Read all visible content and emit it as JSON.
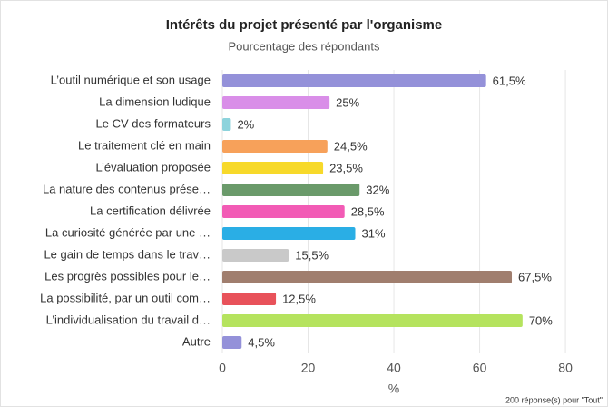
{
  "chart_data": {
    "type": "barh",
    "title": "Intérêts du projet présenté par l'organisme",
    "subtitle": "Pourcentage des répondants",
    "xlabel": "%",
    "footnote": "200 réponse(s) pour \"Tout\"",
    "categories": [
      "L’outil numérique et son usage",
      "La dimension ludique",
      "Le CV des formateurs",
      "Le traitement clé en main",
      "L’évaluation proposée",
      "La nature des contenus prése…",
      "La certification délivrée",
      "La curiosité générée par une …",
      "Le gain de temps dans le trav…",
      "Les progrès possibles pour le…",
      "La possibilité, par un outil com…",
      "L’individualisation du travail d…",
      "Autre"
    ],
    "values": [
      61.5,
      25,
      2,
      24.5,
      23.5,
      32,
      28.5,
      31,
      15.5,
      67.5,
      12.5,
      70,
      4.5
    ],
    "value_labels": [
      "61,5%",
      "25%",
      "2%",
      "24,5%",
      "23,5%",
      "32%",
      "28,5%",
      "31%",
      "15,5%",
      "67,5%",
      "12,5%",
      "70%",
      "4,5%"
    ],
    "colors": [
      "#9491d9",
      "#d98ee8",
      "#8dd3dc",
      "#f7a15a",
      "#f7d92a",
      "#6a9a6a",
      "#f25bb5",
      "#2aaee5",
      "#c9c9c9",
      "#a07e6e",
      "#e8525a",
      "#b5e35e",
      "#9491d9"
    ],
    "xlim": [
      0,
      84
    ],
    "xticks": [
      0,
      20,
      40,
      60,
      80
    ],
    "grid": true
  }
}
